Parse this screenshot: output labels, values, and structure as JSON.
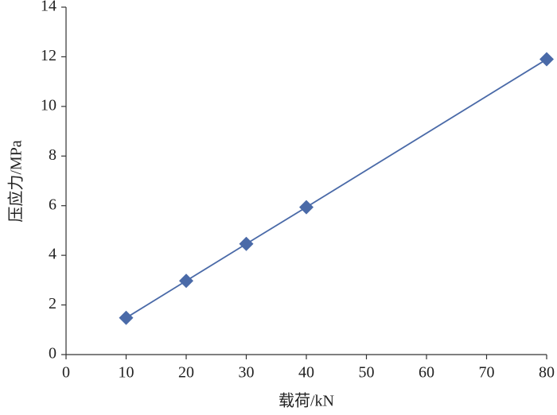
{
  "chart_data": {
    "type": "line",
    "x_label": "载荷/kN",
    "y_label": "压应力/MPa",
    "x": [
      10,
      20,
      30,
      40,
      80
    ],
    "values": [
      1.48,
      2.97,
      4.46,
      5.94,
      11.9
    ],
    "color": "#4a6aa8",
    "xlim": [
      0,
      80
    ],
    "xticks": [
      0,
      10,
      20,
      30,
      40,
      50,
      60,
      70,
      80
    ],
    "ylim": [
      0,
      14
    ],
    "yticks": [
      0,
      2,
      4,
      6,
      8,
      10,
      12,
      14
    ],
    "grid": false,
    "marker": "diamond"
  }
}
